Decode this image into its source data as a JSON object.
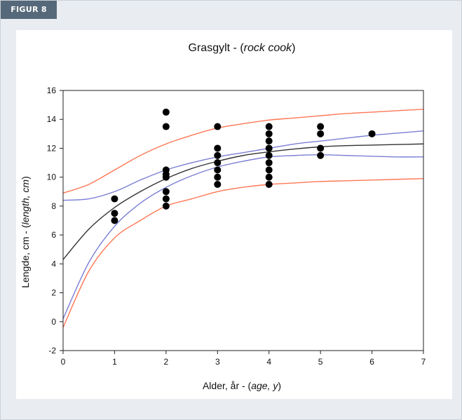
{
  "figure_tag": "FIGUR 8",
  "chart_data": {
    "type": "scatter",
    "title": "Grasgylt - (rock cook)",
    "title_plain": "Grasgylt - (",
    "title_italic": "rock cook",
    "title_close": ")",
    "xlabel": "Alder, år - (age, y)",
    "xlabel_plain": "Alder, år - (",
    "xlabel_italic": "age, y",
    "xlabel_close": ")",
    "ylabel": "Lengde, cm - (length, cm)",
    "ylabel_plain": "Lengde, cm - (",
    "ylabel_italic": "length, cm",
    "ylabel_close": ")",
    "xlim": [
      0,
      7
    ],
    "ylim": [
      -2,
      16
    ],
    "x_ticks": [
      "0",
      "1",
      "2",
      "3",
      "4",
      "5",
      "6",
      "7"
    ],
    "y_ticks": [
      "-2",
      "0",
      "2",
      "4",
      "6",
      "8",
      "10",
      "12",
      "14",
      "16"
    ],
    "grid": false,
    "points": [
      {
        "x": 1,
        "y": 8.5
      },
      {
        "x": 1,
        "y": 7.5
      },
      {
        "x": 1,
        "y": 7.0
      },
      {
        "x": 2,
        "y": 14.5
      },
      {
        "x": 2,
        "y": 13.5
      },
      {
        "x": 2,
        "y": 10.5
      },
      {
        "x": 2,
        "y": 10.2
      },
      {
        "x": 2,
        "y": 10.0
      },
      {
        "x": 2,
        "y": 9.0
      },
      {
        "x": 2,
        "y": 8.5
      },
      {
        "x": 2,
        "y": 8.0
      },
      {
        "x": 3,
        "y": 13.5
      },
      {
        "x": 3,
        "y": 12.0
      },
      {
        "x": 3,
        "y": 11.5
      },
      {
        "x": 3,
        "y": 11.0
      },
      {
        "x": 3,
        "y": 10.5
      },
      {
        "x": 3,
        "y": 10.0
      },
      {
        "x": 3,
        "y": 9.5
      },
      {
        "x": 4,
        "y": 13.5
      },
      {
        "x": 4,
        "y": 13.0
      },
      {
        "x": 4,
        "y": 12.5
      },
      {
        "x": 4,
        "y": 12.0
      },
      {
        "x": 4,
        "y": 11.5
      },
      {
        "x": 4,
        "y": 11.0
      },
      {
        "x": 4,
        "y": 10.5
      },
      {
        "x": 4,
        "y": 10.0
      },
      {
        "x": 4,
        "y": 9.5
      },
      {
        "x": 5,
        "y": 13.5
      },
      {
        "x": 5,
        "y": 13.0
      },
      {
        "x": 5,
        "y": 12.0
      },
      {
        "x": 5,
        "y": 11.5
      },
      {
        "x": 6,
        "y": 13.0
      }
    ],
    "curves": [
      {
        "role": "fit",
        "color": "#333333",
        "x": [
          0,
          0.5,
          1,
          1.5,
          2,
          2.5,
          3,
          3.5,
          4,
          4.5,
          5,
          5.5,
          6,
          6.5,
          7
        ],
        "y": [
          4.3,
          6.4,
          7.9,
          9.0,
          9.9,
          10.6,
          11.1,
          11.5,
          11.75,
          11.95,
          12.1,
          12.18,
          12.22,
          12.26,
          12.3
        ]
      },
      {
        "role": "ci-upper",
        "color": "#7a7fd4",
        "x": [
          0,
          0.5,
          1,
          1.5,
          2,
          2.5,
          3,
          3.5,
          4,
          4.5,
          5,
          5.5,
          6,
          6.5,
          7
        ],
        "y": [
          8.4,
          8.5,
          9.0,
          9.8,
          10.5,
          11.0,
          11.4,
          11.7,
          12.0,
          12.3,
          12.5,
          12.7,
          12.9,
          13.05,
          13.2
        ]
      },
      {
        "role": "ci-lower",
        "color": "#7a7fd4",
        "x": [
          0,
          0.5,
          1,
          1.5,
          2,
          2.5,
          3,
          3.5,
          4,
          4.5,
          5,
          5.5,
          6,
          6.5,
          7
        ],
        "y": [
          0.2,
          4.1,
          6.6,
          8.2,
          9.3,
          10.1,
          10.7,
          11.1,
          11.4,
          11.5,
          11.55,
          11.5,
          11.45,
          11.4,
          11.4
        ]
      },
      {
        "role": "pi-upper",
        "color": "#ff7755",
        "x": [
          0,
          0.5,
          1,
          1.5,
          2,
          2.5,
          3,
          3.5,
          4,
          4.5,
          5,
          5.5,
          6,
          6.5,
          7
        ],
        "y": [
          8.9,
          9.5,
          10.5,
          11.5,
          12.3,
          12.9,
          13.4,
          13.7,
          13.95,
          14.1,
          14.25,
          14.4,
          14.5,
          14.6,
          14.7
        ]
      },
      {
        "role": "pi-lower",
        "color": "#ff7755",
        "x": [
          0,
          0.5,
          1,
          1.5,
          2,
          2.5,
          3,
          3.5,
          4,
          4.5,
          5,
          5.5,
          6,
          6.5,
          7
        ],
        "y": [
          -0.4,
          3.5,
          5.8,
          7.0,
          8.0,
          8.5,
          9.0,
          9.3,
          9.5,
          9.6,
          9.7,
          9.75,
          9.8,
          9.85,
          9.9
        ]
      }
    ]
  }
}
